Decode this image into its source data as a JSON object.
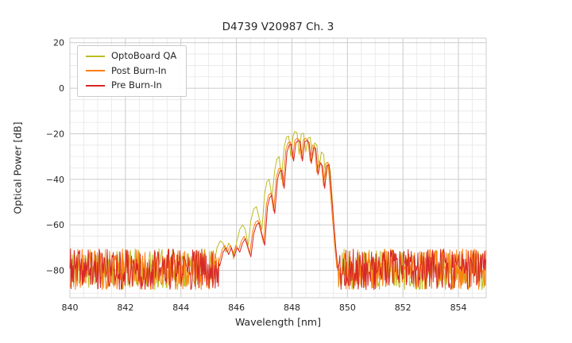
{
  "chart_data": {
    "type": "line",
    "title": "D4739 V20987 Ch. 3",
    "xlabel": "Wavelength [nm]",
    "ylabel": "Optical Power [dB]",
    "xlim": [
      840,
      855
    ],
    "ylim": [
      -92,
      22
    ],
    "xtick_labels": [
      "840",
      "842",
      "844",
      "846",
      "848",
      "850",
      "852",
      "854"
    ],
    "xtick_values": [
      840,
      842,
      844,
      846,
      848,
      850,
      852,
      854
    ],
    "ytick_labels": [
      "20",
      "0",
      "−20",
      "−40",
      "−60",
      "−80"
    ],
    "ytick_values": [
      20,
      0,
      -20,
      -40,
      -60,
      -80
    ],
    "grid": {
      "major_color": "#cbcbcb",
      "minor_color": "#e7e7e7",
      "x_minor_step": 0.5,
      "y_minor_step": 5,
      "border_color": "#cccccc"
    },
    "legend_position": "upper-left",
    "noise_floor": {
      "step": 0.022,
      "min_db": -88.5,
      "max_db": -70.5
    },
    "series": [
      {
        "name": "OptoBoard QA",
        "color": "#bcbd22",
        "seed": 11,
        "peak_range": [
          845.2,
          849.66
        ],
        "peak_points": [
          [
            845.2,
            -77
          ],
          [
            845.3,
            -70
          ],
          [
            845.42,
            -67
          ],
          [
            845.52,
            -68
          ],
          [
            845.62,
            -72
          ],
          [
            845.72,
            -68
          ],
          [
            845.82,
            -70
          ],
          [
            845.9,
            -75
          ],
          [
            846.0,
            -68
          ],
          [
            846.12,
            -62
          ],
          [
            846.22,
            -60
          ],
          [
            846.32,
            -62
          ],
          [
            846.42,
            -69
          ],
          [
            846.52,
            -58
          ],
          [
            846.62,
            -53
          ],
          [
            846.72,
            -52
          ],
          [
            846.82,
            -57
          ],
          [
            846.92,
            -62
          ],
          [
            847.02,
            -46
          ],
          [
            847.1,
            -41
          ],
          [
            847.18,
            -40
          ],
          [
            847.28,
            -48
          ],
          [
            847.38,
            -36
          ],
          [
            847.46,
            -31
          ],
          [
            847.54,
            -30
          ],
          [
            847.62,
            -40
          ],
          [
            847.72,
            -26
          ],
          [
            847.8,
            -21.5
          ],
          [
            847.88,
            -21
          ],
          [
            847.96,
            -30
          ],
          [
            848.04,
            -21
          ],
          [
            848.1,
            -19
          ],
          [
            848.18,
            -19.5
          ],
          [
            848.26,
            -29
          ],
          [
            848.34,
            -20
          ],
          [
            848.42,
            -19.8
          ],
          [
            848.5,
            -28
          ],
          [
            848.58,
            -22
          ],
          [
            848.66,
            -21.5
          ],
          [
            848.74,
            -31
          ],
          [
            848.82,
            -24
          ],
          [
            848.9,
            -25
          ],
          [
            848.98,
            -35
          ],
          [
            849.06,
            -28
          ],
          [
            849.14,
            -29
          ],
          [
            849.22,
            -40
          ],
          [
            849.3,
            -33
          ],
          [
            849.38,
            -36
          ],
          [
            849.46,
            -50
          ],
          [
            849.52,
            -62
          ],
          [
            849.58,
            -72
          ],
          [
            849.66,
            -79
          ]
        ]
      },
      {
        "name": "Post Burn-In",
        "color": "#ff7f0e",
        "seed": 23,
        "peak_range": [
          845.36,
          849.62
        ],
        "peak_points": [
          [
            845.36,
            -77
          ],
          [
            845.48,
            -71
          ],
          [
            845.58,
            -69
          ],
          [
            845.68,
            -72
          ],
          [
            845.78,
            -69
          ],
          [
            845.88,
            -73
          ],
          [
            845.98,
            -69
          ],
          [
            846.08,
            -71
          ],
          [
            846.18,
            -67
          ],
          [
            846.28,
            -65
          ],
          [
            846.38,
            -69
          ],
          [
            846.48,
            -73
          ],
          [
            846.58,
            -63
          ],
          [
            846.68,
            -59
          ],
          [
            846.78,
            -58
          ],
          [
            846.88,
            -63
          ],
          [
            846.98,
            -68
          ],
          [
            847.08,
            -51
          ],
          [
            847.16,
            -47
          ],
          [
            847.24,
            -46
          ],
          [
            847.34,
            -54
          ],
          [
            847.44,
            -39
          ],
          [
            847.52,
            -35.5
          ],
          [
            847.6,
            -35
          ],
          [
            847.68,
            -43
          ],
          [
            847.78,
            -27
          ],
          [
            847.86,
            -24
          ],
          [
            847.94,
            -23.5
          ],
          [
            848.02,
            -31
          ],
          [
            848.1,
            -23
          ],
          [
            848.18,
            -22
          ],
          [
            848.26,
            -22.5
          ],
          [
            848.34,
            -31
          ],
          [
            848.42,
            -22.5
          ],
          [
            848.5,
            -22
          ],
          [
            848.58,
            -23
          ],
          [
            848.66,
            -32
          ],
          [
            848.74,
            -25
          ],
          [
            848.82,
            -25.5
          ],
          [
            848.9,
            -37
          ],
          [
            848.98,
            -32
          ],
          [
            849.06,
            -33
          ],
          [
            849.14,
            -43
          ],
          [
            849.22,
            -33
          ],
          [
            849.3,
            -32.5
          ],
          [
            849.38,
            -45
          ],
          [
            849.46,
            -57
          ],
          [
            849.54,
            -69
          ],
          [
            849.62,
            -79
          ]
        ]
      },
      {
        "name": "Pre Burn-In",
        "color": "#d62728",
        "seed": 37,
        "peak_range": [
          845.4,
          849.66
        ],
        "peak_points": [
          [
            845.4,
            -78
          ],
          [
            845.52,
            -72
          ],
          [
            845.62,
            -70
          ],
          [
            845.72,
            -73
          ],
          [
            845.82,
            -70
          ],
          [
            845.92,
            -74
          ],
          [
            846.02,
            -70
          ],
          [
            846.12,
            -72
          ],
          [
            846.22,
            -68
          ],
          [
            846.32,
            -66
          ],
          [
            846.42,
            -70
          ],
          [
            846.52,
            -74
          ],
          [
            846.62,
            -64
          ],
          [
            846.72,
            -60
          ],
          [
            846.82,
            -59
          ],
          [
            846.92,
            -64
          ],
          [
            847.02,
            -69
          ],
          [
            847.12,
            -52
          ],
          [
            847.2,
            -48
          ],
          [
            847.28,
            -47
          ],
          [
            847.38,
            -55
          ],
          [
            847.48,
            -40
          ],
          [
            847.56,
            -36.5
          ],
          [
            847.64,
            -36
          ],
          [
            847.72,
            -44
          ],
          [
            847.82,
            -28
          ],
          [
            847.9,
            -25
          ],
          [
            847.98,
            -24.5
          ],
          [
            848.06,
            -32
          ],
          [
            848.14,
            -24
          ],
          [
            848.22,
            -23
          ],
          [
            848.3,
            -23.5
          ],
          [
            848.38,
            -32
          ],
          [
            848.46,
            -23.5
          ],
          [
            848.54,
            -23
          ],
          [
            848.62,
            -24
          ],
          [
            848.7,
            -33
          ],
          [
            848.78,
            -26
          ],
          [
            848.86,
            -26.5
          ],
          [
            848.94,
            -38
          ],
          [
            849.02,
            -33
          ],
          [
            849.1,
            -34
          ],
          [
            849.18,
            -44
          ],
          [
            849.26,
            -34
          ],
          [
            849.34,
            -33.5
          ],
          [
            849.42,
            -46
          ],
          [
            849.5,
            -58
          ],
          [
            849.58,
            -70
          ],
          [
            849.66,
            -80
          ]
        ]
      }
    ]
  }
}
